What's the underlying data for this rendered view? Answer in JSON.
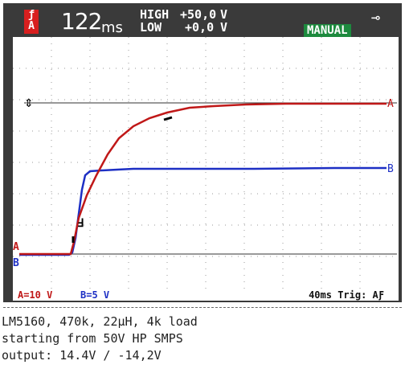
{
  "header": {
    "trigger_badge": "ƒ A",
    "timebase_value": "122",
    "timebase_unit": "ms",
    "high_label": "HIGH",
    "high_value": "+50,0",
    "high_unit": "V",
    "low_label": "LOW",
    "low_value": "+0,0",
    "low_unit": "V",
    "mode": "MANUAL",
    "plug_icon": "power-plug-icon"
  },
  "markers": {
    "channel_a": "A",
    "channel_b": "B",
    "trigger_mark": "Ⅎ"
  },
  "footer": {
    "channel_a_scale": "A=10 V",
    "channel_b_scale": "B=5 V",
    "time_trigger": "40ms Trig: AƑ"
  },
  "caption": {
    "line1": "LM5160, 470k, 22µH, 4k load",
    "line2": "starting from 50V HP SMPS",
    "line3": "output: 14.4V / -14,2V"
  },
  "colors": {
    "channel_a": "#c01818",
    "channel_b": "#1d2fc4",
    "manual_badge": "#1d8a3e",
    "bezel": "#3a3a3a"
  }
}
